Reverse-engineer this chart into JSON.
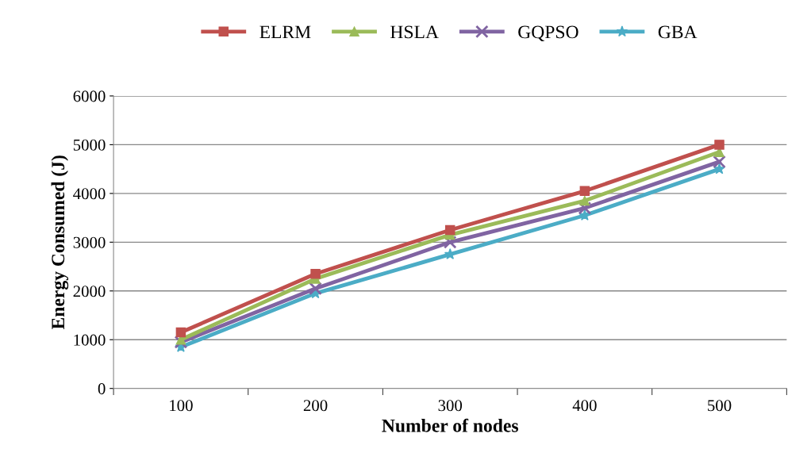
{
  "chart_data": {
    "type": "line",
    "xlabel": "Number of nodes",
    "ylabel": "Energy Consumed (J)",
    "categories": [
      "100",
      "200",
      "300",
      "400",
      "500"
    ],
    "series": [
      {
        "name": "ELRM",
        "color": "#c0504d",
        "marker": "square",
        "values": [
          1150,
          2350,
          3250,
          4050,
          5000
        ]
      },
      {
        "name": "HSLA",
        "color": "#9bbb59",
        "marker": "triangle",
        "values": [
          1000,
          2250,
          3150,
          3850,
          4850
        ]
      },
      {
        "name": "GQPSO",
        "color": "#8064a2",
        "marker": "cross",
        "values": [
          950,
          2050,
          3000,
          3700,
          4650
        ]
      },
      {
        "name": "GBA",
        "color": "#4bacc6",
        "marker": "star",
        "values": [
          850,
          1950,
          2750,
          3550,
          4500
        ]
      }
    ],
    "ylim": [
      0,
      6000
    ],
    "yticks": [
      0,
      1000,
      2000,
      3000,
      4000,
      5000,
      6000
    ],
    "grid": "y",
    "legend": "top",
    "line_style": "solid"
  }
}
